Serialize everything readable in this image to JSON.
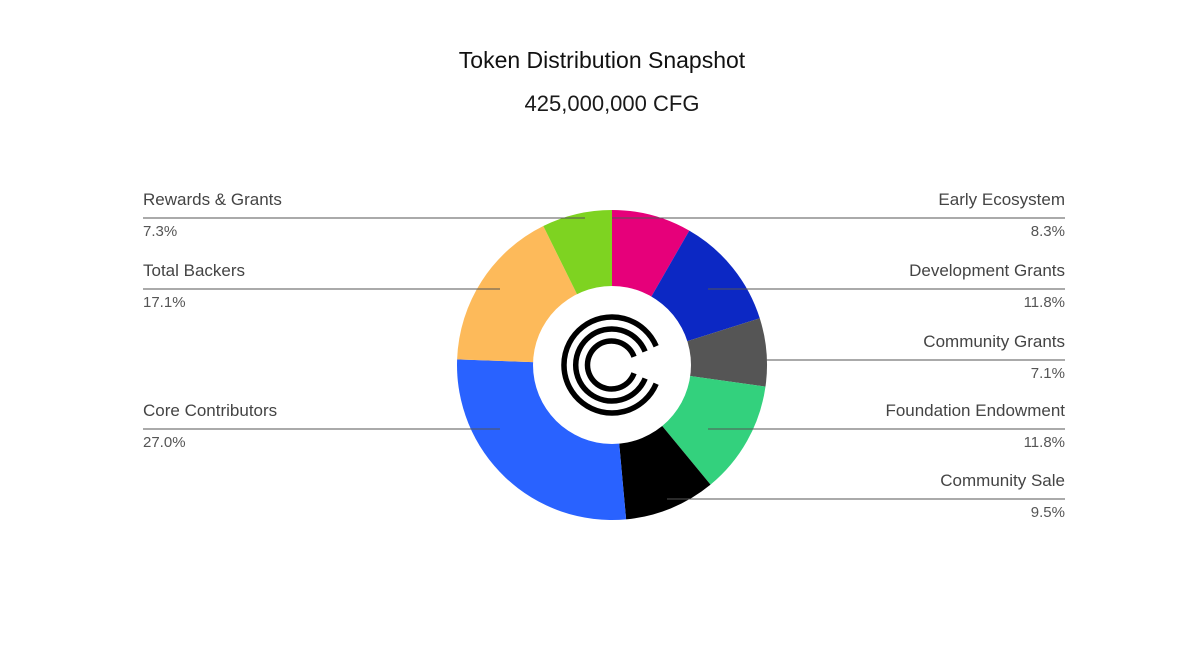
{
  "chart_data": {
    "type": "pie",
    "variant": "donut",
    "title": "Token Distribution Snapshot",
    "subtitle": "425,000,000 CFG",
    "slices": [
      {
        "label": "Early Ecosystem",
        "value": 8.3,
        "display": "8.3%",
        "color": "#E6007A",
        "side": "right"
      },
      {
        "label": "Development Grants",
        "value": 11.8,
        "display": "11.8%",
        "color": "#0C28C4",
        "side": "right"
      },
      {
        "label": "Community Grants",
        "value": 7.1,
        "display": "7.1%",
        "color": "#555555",
        "side": "right"
      },
      {
        "label": "Foundation Endowment",
        "value": 11.8,
        "display": "11.8%",
        "color": "#33D17D",
        "side": "right"
      },
      {
        "label": "Community Sale",
        "value": 9.5,
        "display": "9.5%",
        "color": "#000000",
        "side": "right"
      },
      {
        "label": "Core Contributors",
        "value": 27.0,
        "display": "27.0%",
        "color": "#2962FF",
        "side": "left"
      },
      {
        "label": "Total Backers",
        "value": 17.1,
        "display": "17.1%",
        "color": "#FDBA5A",
        "side": "left"
      },
      {
        "label": "Rewards & Grants",
        "value": 7.3,
        "display": "7.3%",
        "color": "#7ED321",
        "side": "left"
      }
    ],
    "legend": "labels beside chart with leader lines",
    "center_icon": "centrifuge-logo-icon"
  }
}
